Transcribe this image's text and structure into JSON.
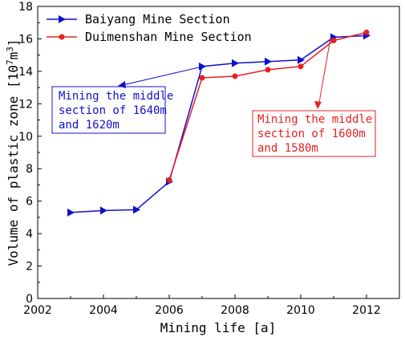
{
  "chart_data": {
    "type": "line",
    "xlabel": "Mining life [a]",
    "ylabel": "Volume of plastic zone [10^7m^3]",
    "ylabel_parts": {
      "main": "Volume of plastic zone [10",
      "exp1": "7",
      "mid": "m",
      "exp2": "3",
      "end": "]"
    },
    "xlim": [
      2002,
      2013
    ],
    "ylim": [
      0,
      18
    ],
    "xticks": [
      2002,
      2004,
      2006,
      2008,
      2010,
      2012
    ],
    "yticks": [
      0,
      2,
      4,
      6,
      8,
      10,
      12,
      14,
      16,
      18
    ],
    "grid": false,
    "legend_position": "top-left",
    "series": [
      {
        "name": "Baiyang Mine Section",
        "color": "#1010d0",
        "marker": "triangle-right",
        "x": [
          2003,
          2004,
          2005,
          2006,
          2007,
          2008,
          2009,
          2010,
          2011,
          2012
        ],
        "y": [
          5.3,
          5.42,
          5.47,
          7.2,
          14.3,
          14.5,
          14.6,
          14.7,
          16.1,
          16.2
        ]
      },
      {
        "name": "Duimenshan Mine Section",
        "color": "#e82020",
        "marker": "circle",
        "x": [
          2006,
          2007,
          2008,
          2009,
          2010,
          2011,
          2012
        ],
        "y": [
          7.3,
          13.6,
          13.7,
          14.1,
          14.3,
          15.9,
          16.4
        ]
      }
    ],
    "annotations": [
      {
        "lines": [
          "Mining the middle",
          "section of 1640m",
          "and 1620m"
        ],
        "color": "#1010d0",
        "target": {
          "x": 2004.5,
          "y": 13.1
        }
      },
      {
        "lines": [
          "Mining the middle",
          "section of 1600m",
          "and 1580m"
        ],
        "color": "#e82020",
        "target": {
          "x": 2010.5,
          "y": 11.7
        }
      }
    ]
  }
}
